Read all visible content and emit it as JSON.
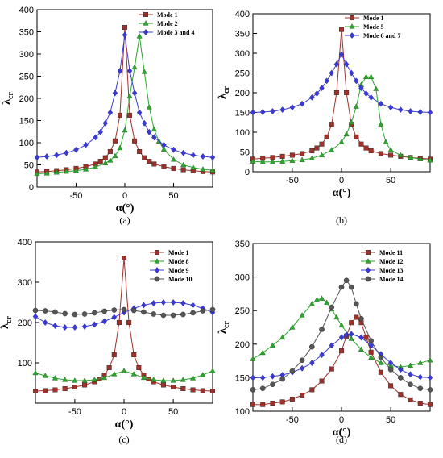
{
  "chart_data": [
    {
      "type": "line",
      "panel_label": "(a)",
      "xlabel": "α(°)",
      "ylabel": "λcr",
      "xlim": [
        -90,
        90
      ],
      "ylim": [
        0,
        400
      ],
      "xticks": [
        -50,
        0,
        50
      ],
      "yticks": [
        0,
        50,
        100,
        150,
        200,
        250,
        300,
        350,
        400
      ],
      "legend_position": "top-right",
      "grid": false,
      "series": [
        {
          "name": "Mode 1",
          "color": "#a0302a",
          "marker": "square",
          "x": [
            -90,
            -80,
            -70,
            -60,
            -50,
            -40,
            -30,
            -25,
            -20,
            -15,
            -10,
            -5,
            0,
            5,
            10,
            15,
            20,
            25,
            30,
            40,
            50,
            60,
            70,
            80,
            90
          ],
          "y": [
            34,
            35,
            37,
            39,
            42,
            46,
            52,
            58,
            66,
            80,
            104,
            162,
            360,
            162,
            104,
            80,
            66,
            58,
            52,
            46,
            42,
            39,
            37,
            35,
            34
          ]
        },
        {
          "name": "Mode 2",
          "color": "#2ea62e",
          "marker": "triangle",
          "x": [
            -90,
            -80,
            -70,
            -60,
            -50,
            -40,
            -30,
            -20,
            -15,
            -10,
            -5,
            0,
            5,
            10,
            15,
            20,
            25,
            30,
            35,
            40,
            50,
            60,
            70,
            80,
            90
          ],
          "y": [
            30,
            31,
            33,
            35,
            37,
            40,
            45,
            54,
            60,
            70,
            88,
            128,
            205,
            270,
            340,
            260,
            180,
            130,
            103,
            85,
            62,
            50,
            44,
            40,
            38
          ]
        },
        {
          "name": "Mode 3 and 4",
          "color": "#3a3ad8",
          "marker": "diamond",
          "x": [
            -90,
            -80,
            -70,
            -60,
            -50,
            -40,
            -30,
            -25,
            -20,
            -15,
            -10,
            -5,
            0,
            5,
            10,
            15,
            20,
            25,
            30,
            40,
            50,
            60,
            70,
            80,
            90
          ],
          "y": [
            67,
            69,
            72,
            77,
            84,
            95,
            112,
            124,
            144,
            168,
            212,
            262,
            343,
            262,
            212,
            168,
            144,
            124,
            112,
            95,
            84,
            77,
            72,
            69,
            67
          ]
        }
      ]
    },
    {
      "type": "line",
      "panel_label": "(b)",
      "xlabel": "α(°)",
      "ylabel": "λcr",
      "xlim": [
        -90,
        90
      ],
      "ylim": [
        0,
        400
      ],
      "xticks": [
        -50,
        0,
        50
      ],
      "yticks": [
        0,
        50,
        100,
        150,
        200,
        250,
        300,
        350,
        400
      ],
      "legend_position": "top-right",
      "grid": false,
      "series": [
        {
          "name": "Mode 1",
          "color": "#a0302a",
          "marker": "square",
          "x": [
            -90,
            -80,
            -70,
            -60,
            -50,
            -40,
            -30,
            -25,
            -20,
            -15,
            -10,
            -5,
            0,
            5,
            10,
            15,
            20,
            25,
            30,
            40,
            50,
            60,
            70,
            80,
            90
          ],
          "y": [
            32,
            34,
            36,
            39,
            42,
            46,
            53,
            60,
            70,
            88,
            120,
            200,
            360,
            200,
            120,
            88,
            70,
            60,
            53,
            46,
            42,
            39,
            36,
            34,
            32
          ]
        },
        {
          "name": "Mode 5",
          "color": "#2ea62e",
          "marker": "triangle",
          "x": [
            -90,
            -80,
            -70,
            -60,
            -50,
            -40,
            -30,
            -20,
            -10,
            0,
            5,
            10,
            15,
            20,
            25,
            30,
            35,
            40,
            45,
            50,
            60,
            70,
            80,
            90
          ],
          "y": [
            26,
            25,
            25,
            26,
            28,
            30,
            34,
            42,
            55,
            75,
            95,
            125,
            165,
            220,
            240,
            240,
            210,
            120,
            75,
            55,
            42,
            36,
            32,
            29
          ]
        },
        {
          "name": "Mode 6 and 7",
          "color": "#3a3ad8",
          "marker": "diamond",
          "x": [
            -90,
            -80,
            -70,
            -60,
            -50,
            -40,
            -30,
            -25,
            -20,
            -15,
            -10,
            -5,
            0,
            5,
            10,
            15,
            20,
            25,
            30,
            40,
            50,
            60,
            70,
            80,
            90
          ],
          "y": [
            150,
            151,
            153,
            157,
            163,
            172,
            188,
            198,
            212,
            230,
            250,
            272,
            297,
            272,
            250,
            230,
            212,
            198,
            188,
            172,
            163,
            157,
            153,
            151,
            150
          ]
        }
      ]
    },
    {
      "type": "line",
      "panel_label": "(c)",
      "xlabel": "α(°)",
      "ylabel": "λcr",
      "xlim": [
        -90,
        90
      ],
      "ylim": [
        0,
        400
      ],
      "xticks": [
        -50,
        0,
        50
      ],
      "yticks": [
        100,
        200,
        300,
        400
      ],
      "legend_position": "top-right",
      "grid": false,
      "series": [
        {
          "name": "Mode 1",
          "color": "#a0302a",
          "marker": "square",
          "x": [
            -90,
            -80,
            -70,
            -60,
            -50,
            -40,
            -30,
            -25,
            -20,
            -15,
            -10,
            -5,
            0,
            5,
            10,
            15,
            20,
            25,
            30,
            40,
            50,
            60,
            70,
            80,
            90
          ],
          "y": [
            30,
            31,
            33,
            36,
            40,
            45,
            53,
            60,
            70,
            88,
            120,
            200,
            360,
            200,
            120,
            88,
            70,
            60,
            53,
            45,
            40,
            36,
            33,
            31,
            30
          ]
        },
        {
          "name": "Mode 8",
          "color": "#2ea62e",
          "marker": "triangle",
          "x": [
            -90,
            -80,
            -70,
            -60,
            -50,
            -40,
            -30,
            -20,
            -10,
            0,
            10,
            20,
            30,
            40,
            50,
            60,
            70,
            80,
            90
          ],
          "y": [
            75,
            68,
            62,
            58,
            56,
            56,
            58,
            63,
            72,
            80,
            72,
            63,
            58,
            56,
            56,
            58,
            62,
            70,
            80
          ]
        },
        {
          "name": "Mode 9",
          "color": "#3a3ad8",
          "marker": "diamond",
          "x": [
            -90,
            -80,
            -70,
            -60,
            -50,
            -40,
            -30,
            -20,
            -10,
            0,
            10,
            20,
            30,
            40,
            50,
            60,
            70,
            80,
            90
          ],
          "y": [
            215,
            200,
            192,
            188,
            188,
            190,
            195,
            203,
            213,
            225,
            235,
            243,
            248,
            250,
            250,
            248,
            243,
            235,
            225
          ]
        },
        {
          "name": "Mode 10",
          "color": "#555555",
          "marker": "circle",
          "x": [
            -90,
            -80,
            -70,
            -60,
            -50,
            -40,
            -30,
            -20,
            -10,
            0,
            10,
            20,
            30,
            40,
            50,
            60,
            70,
            80,
            90
          ],
          "y": [
            230,
            229,
            226,
            222,
            220,
            221,
            224,
            228,
            231,
            232,
            230,
            226,
            221,
            218,
            218,
            220,
            224,
            229,
            232
          ]
        }
      ]
    },
    {
      "type": "line",
      "panel_label": "(d)",
      "xlabel": "α(°)",
      "ylabel": "λcr",
      "xlim": [
        -90,
        90
      ],
      "ylim": [
        100,
        350
      ],
      "xticks": [
        -50,
        0,
        50
      ],
      "yticks": [
        100,
        150,
        200,
        250,
        300,
        350
      ],
      "legend_position": "top-right",
      "grid": false,
      "series": [
        {
          "name": "Mode 11",
          "color": "#a0302a",
          "marker": "square",
          "x": [
            -90,
            -80,
            -70,
            -60,
            -50,
            -40,
            -30,
            -20,
            -10,
            0,
            5,
            10,
            15,
            20,
            25,
            30,
            40,
            50,
            60,
            70,
            80,
            90
          ],
          "y": [
            110,
            110,
            112,
            114,
            118,
            124,
            132,
            145,
            163,
            190,
            212,
            232,
            240,
            232,
            210,
            188,
            158,
            138,
            125,
            117,
            112,
            110
          ]
        },
        {
          "name": "Mode 12",
          "color": "#2ea62e",
          "marker": "triangle",
          "x": [
            -90,
            -80,
            -70,
            -60,
            -50,
            -40,
            -30,
            -25,
            -20,
            -15,
            -10,
            -5,
            0,
            10,
            20,
            30,
            40,
            50,
            60,
            70,
            80,
            90
          ],
          "y": [
            178,
            187,
            198,
            210,
            225,
            243,
            260,
            266,
            268,
            262,
            252,
            240,
            228,
            208,
            192,
            180,
            172,
            168,
            166,
            168,
            172,
            176
          ]
        },
        {
          "name": "Mode 13",
          "color": "#3a3ad8",
          "marker": "diamond",
          "x": [
            -90,
            -80,
            -70,
            -60,
            -50,
            -40,
            -30,
            -20,
            -10,
            0,
            5,
            10,
            20,
            30,
            40,
            50,
            60,
            70,
            80,
            90
          ],
          "y": [
            150,
            150,
            152,
            154,
            158,
            164,
            172,
            184,
            198,
            210,
            214,
            215,
            210,
            198,
            185,
            172,
            162,
            155,
            151,
            150
          ]
        },
        {
          "name": "Mode 14",
          "color": "#555555",
          "marker": "circle",
          "x": [
            -90,
            -80,
            -70,
            -60,
            -50,
            -40,
            -30,
            -20,
            -10,
            0,
            5,
            10,
            15,
            20,
            30,
            40,
            50,
            60,
            70,
            80,
            90
          ],
          "y": [
            132,
            134,
            140,
            148,
            160,
            176,
            196,
            222,
            255,
            285,
            295,
            285,
            260,
            238,
            205,
            180,
            162,
            150,
            140,
            134,
            132
          ]
        }
      ]
    }
  ]
}
